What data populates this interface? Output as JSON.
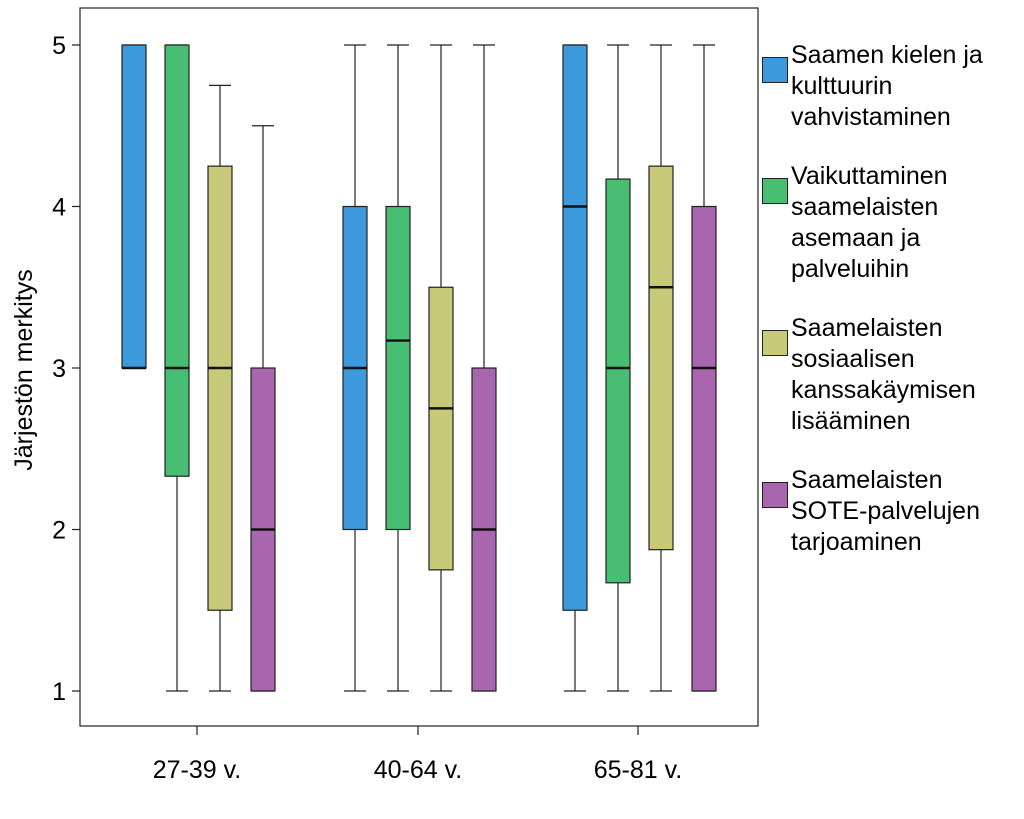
{
  "chart_data": {
    "type": "boxplot",
    "ylabel": "Järjestön merkitys",
    "xlabel": "",
    "ylim": [
      0.9,
      5.2
    ],
    "yticks": [
      1,
      2,
      3,
      4,
      5
    ],
    "categories": [
      "27-39 v.",
      "40-64 v.",
      "65-81 v."
    ],
    "legend_position": "right",
    "series": [
      {
        "name": "Saamen kielen ja kulttuurin vahvistaminen",
        "color": "#3b99dc",
        "boxes": [
          {
            "min": 3,
            "q1": 3,
            "median": 3,
            "q3": 5,
            "max": 5
          },
          {
            "min": 1,
            "q1": 2,
            "median": 3,
            "q3": 4,
            "max": 5
          },
          {
            "min": 1,
            "q1": 1.5,
            "median": 4,
            "q3": 5,
            "max": 5
          }
        ]
      },
      {
        "name": "Vaikuttaminen saamelaisten asemaan ja palveluihin",
        "color": "#47be72",
        "boxes": [
          {
            "min": 1,
            "q1": 2.33,
            "median": 3,
            "q3": 5,
            "max": 5
          },
          {
            "min": 1,
            "q1": 2,
            "median": 3.17,
            "q3": 4,
            "max": 5
          },
          {
            "min": 1,
            "q1": 1.67,
            "median": 3,
            "q3": 4.17,
            "max": 5
          }
        ]
      },
      {
        "name": "Saamelaisten sosiaalisen kanssakäymisen lisääminen",
        "color": "#c9c97a",
        "boxes": [
          {
            "min": 1,
            "q1": 1.5,
            "median": 3,
            "q3": 4.25,
            "max": 4.75
          },
          {
            "min": 1,
            "q1": 1.75,
            "median": 2.75,
            "q3": 3.5,
            "max": 5
          },
          {
            "min": 1,
            "q1": 1.875,
            "median": 3.5,
            "q3": 4.25,
            "max": 5
          }
        ]
      },
      {
        "name": "Saamelaisten SOTE-palvelujen tarjoaminen",
        "color": "#a766ad",
        "boxes": [
          {
            "min": 1,
            "q1": 1,
            "median": 2,
            "q3": 3,
            "max": 4.5
          },
          {
            "min": 1,
            "q1": 1,
            "median": 2,
            "q3": 3,
            "max": 5
          },
          {
            "min": 1,
            "q1": 1,
            "median": 3,
            "q3": 4,
            "max": 5
          }
        ]
      }
    ]
  },
  "legend": {
    "items": [
      {
        "label": "Saamen kielen ja\nkulttuurin\nvahvistaminen",
        "color": "#3b99dc"
      },
      {
        "label": "Vaikuttaminen\nsaamelaisten\nasemaan ja\npalveluihin",
        "color": "#47be72"
      },
      {
        "label": "Saamelaisten\nsosiaalisen\nkanssakäymisen\nlisääminen",
        "color": "#c9c97a"
      },
      {
        "label": "Saamelaisten\nSOTE-palvelujen\ntarjoaminen",
        "color": "#a766ad"
      }
    ]
  }
}
